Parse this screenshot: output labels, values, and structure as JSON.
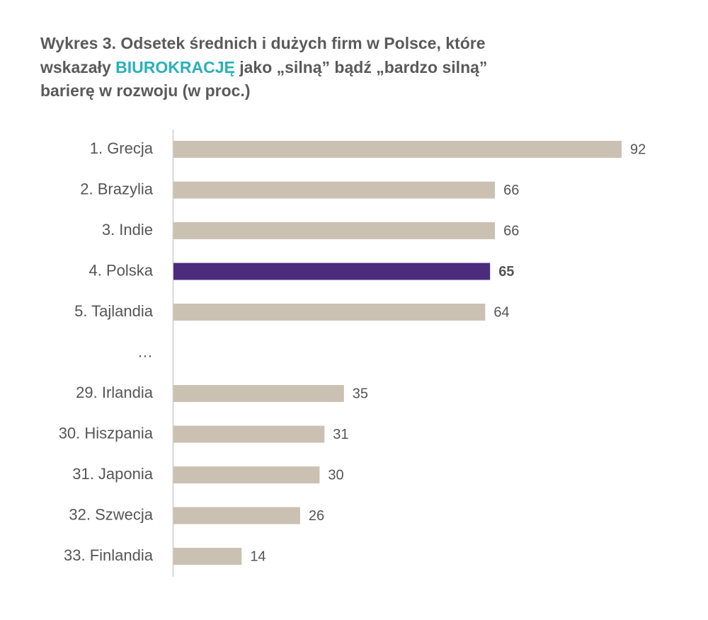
{
  "chart_data": {
    "type": "hbar",
    "title": {
      "line1": "Wykres 3. Odsetek średnich i dużych firm w Polsce, które",
      "line2_before": "wskazały",
      "highlight": "BIUROKRACJĘ",
      "line2_after": "jako „silną” bądź „bardzo silną”",
      "line3": "barierę w rozwoju (w proc.)"
    },
    "highlight_color": "#2ab0b8",
    "categories": [
      "1. Grecja",
      "2. Brazylia",
      "3. Indie",
      "4. Polska",
      "5. Tajlandia",
      "…",
      "29. Irlandia",
      "30. Hiszpania",
      "31. Japonia",
      "32. Szwecja",
      "33. Finlandia"
    ],
    "values": [
      92,
      66,
      66,
      65,
      64,
      null,
      35,
      31,
      30,
      26,
      14
    ],
    "colors": [
      "#cbc1b3",
      "#cbc1b3",
      "#cbc1b3",
      "#4b2c7c",
      "#cbc1b3",
      "#cbc1b3",
      "#cbc1b3",
      "#cbc1b3",
      "#cbc1b3",
      "#cbc1b3",
      "#cbc1b3"
    ],
    "xlim": [
      0,
      100
    ]
  }
}
